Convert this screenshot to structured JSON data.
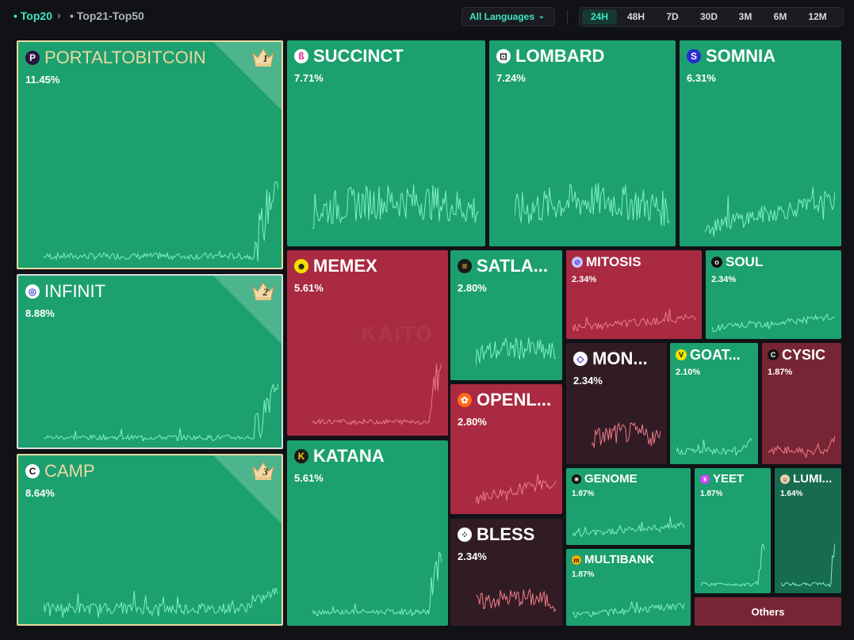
{
  "breadcrumb": {
    "active": "Top20",
    "next": "Top21-Top50"
  },
  "language": {
    "selected": "All Languages"
  },
  "periods": [
    "24H",
    "48H",
    "7D",
    "30D",
    "3M",
    "6M",
    "12M"
  ],
  "active_period": "24H",
  "watermark": "KAITO",
  "colors": {
    "green": "#1ca06f",
    "red": "#a92a41",
    "accent": "#3ee6c1",
    "gold": "#e9d9a0"
  },
  "tiles": [
    {
      "name": "PORTALTOBITCOIN",
      "pct": "11.45%",
      "rank": "1",
      "icon": "portal-icon"
    },
    {
      "name": "INFINIT",
      "pct": "8.88%",
      "rank": "2",
      "icon": "infinit-icon"
    },
    {
      "name": "CAMP",
      "pct": "8.64%",
      "rank": "3",
      "icon": "camp-icon"
    },
    {
      "name": "SUCCINCT",
      "pct": "7.71%",
      "icon": "succinct-icon"
    },
    {
      "name": "LOMBARD",
      "pct": "7.24%",
      "icon": "lombard-icon"
    },
    {
      "name": "SOMNIA",
      "pct": "6.31%",
      "icon": "somnia-icon"
    },
    {
      "name": "MEMEX",
      "pct": "5.61%",
      "icon": "memex-icon"
    },
    {
      "name": "KATANA",
      "pct": "5.61%",
      "icon": "katana-icon"
    },
    {
      "name": "SATLA...",
      "pct": "2.80%",
      "icon": "satlayer-icon"
    },
    {
      "name": "OPENL...",
      "pct": "2.80%",
      "icon": "openledger-icon"
    },
    {
      "name": "BLESS",
      "pct": "2.34%",
      "icon": "bless-icon"
    },
    {
      "name": "MITOSIS",
      "pct": "2.34%",
      "icon": "mitosis-icon"
    },
    {
      "name": "SOUL",
      "pct": "2.34%",
      "icon": "soul-icon"
    },
    {
      "name": "MON...",
      "pct": "2.34%",
      "icon": "monad-icon"
    },
    {
      "name": "GOAT...",
      "pct": "2.10%",
      "icon": "goat-icon"
    },
    {
      "name": "CYSIC",
      "pct": "1.87%",
      "icon": "cysic-icon"
    },
    {
      "name": "GENOME",
      "pct": "1.87%",
      "icon": "genome-icon"
    },
    {
      "name": "MULTIBANK",
      "pct": "1.87%",
      "icon": "multibank-icon"
    },
    {
      "name": "YEET",
      "pct": "1.87%",
      "icon": "yeet-icon"
    },
    {
      "name": "LUMI...",
      "pct": "1.64%",
      "icon": "lumi-icon"
    }
  ],
  "others_label": "Others"
}
